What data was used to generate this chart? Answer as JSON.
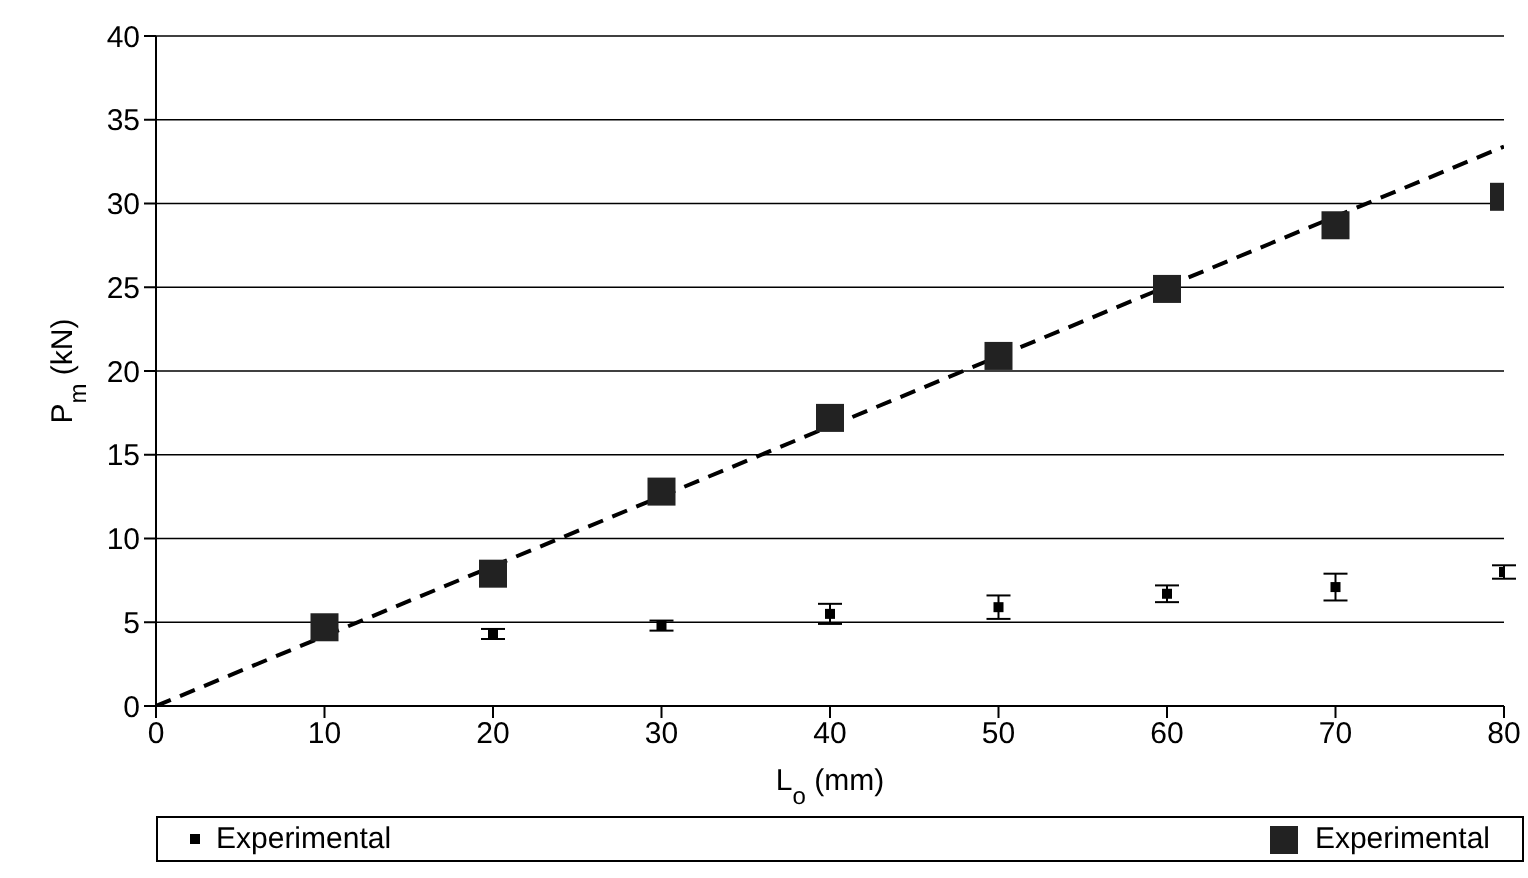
{
  "chart_data": {
    "type": "scatter",
    "xlabel": "L$_{o}$ (mm)",
    "ylabel": "P$_{m}$ (kN)",
    "series": [
      {
        "name": "Experimental",
        "color": "#000000",
        "x": [
          20,
          30,
          40,
          50,
          60,
          70,
          80
        ],
        "values": [
          4.3,
          4.8,
          5.5,
          5.9,
          6.7,
          7.1,
          8.0
        ],
        "errors": [
          0.3,
          0.3,
          0.6,
          0.7,
          0.5,
          0.8,
          0.4
        ],
        "marker": "square"
      },
      {
        "name": "Experimental",
        "color": "#222222",
        "x": [
          10,
          20,
          30,
          40,
          50,
          60,
          70,
          80
        ],
        "values": [
          4.7,
          7.9,
          12.8,
          17.2,
          20.9,
          24.9,
          28.7,
          30.4
        ],
        "marker": "square"
      },
      {
        "type": "line",
        "color": "#000000",
        "x": [
          0,
          80
        ],
        "values": [
          0,
          33.4
        ],
        "line_style": "dashed",
        "marker": "none"
      }
    ],
    "xlim": [
      0,
      80
    ],
    "xticks": [
      0,
      10,
      20,
      30,
      40,
      50,
      60,
      70,
      80
    ],
    "ylim": [
      0,
      40
    ],
    "yticks": [
      0,
      5,
      10,
      15,
      20,
      25,
      30,
      35,
      40
    ],
    "grid": "y",
    "legend": "bottom"
  }
}
